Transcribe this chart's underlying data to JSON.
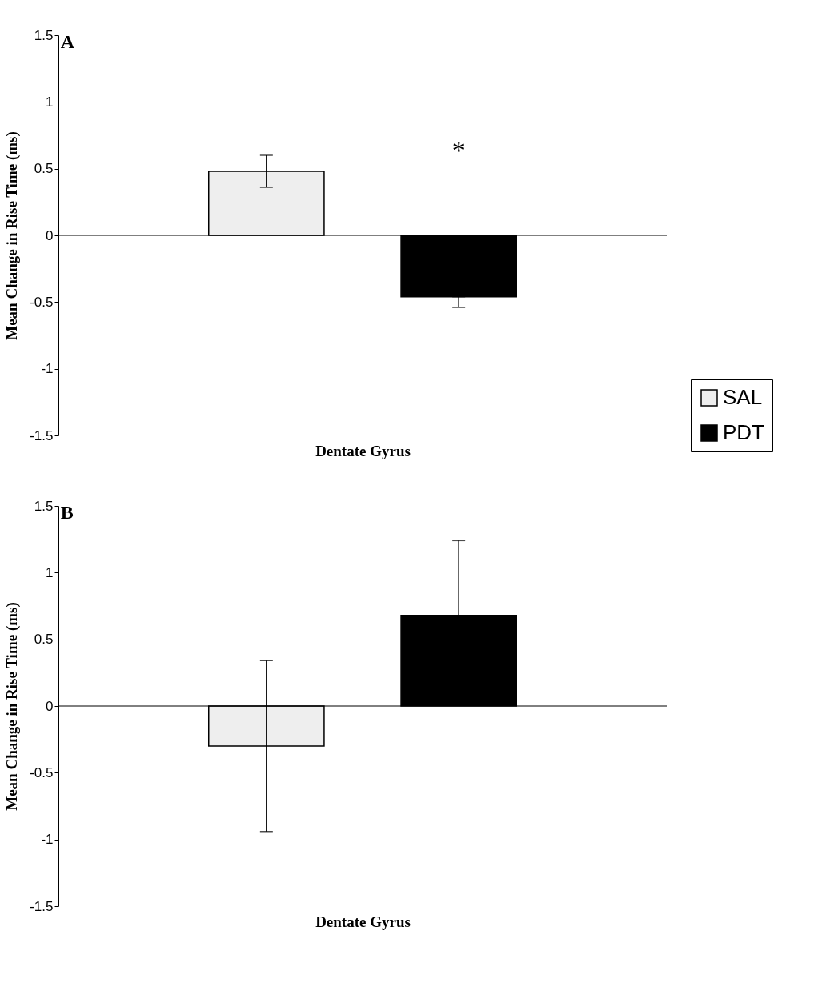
{
  "chart_data": [
    {
      "type": "bar",
      "title": "A",
      "xlabel": "Dentate Gyrus",
      "ylabel": "Mean Change in Rise Time (ms)",
      "categories": [
        null
      ],
      "series": [
        {
          "name": "SAL",
          "color": "#eeeeee",
          "values": [
            0.48
          ],
          "errors": [
            0.12
          ]
        },
        {
          "name": "PDT",
          "color": "#000000",
          "values": [
            -0.46
          ],
          "errors": [
            [
              -0.54,
              -0.46
            ]
          ]
        }
      ],
      "ylim": [
        -1.5,
        1.5
      ],
      "yticks": [
        -1.5,
        -1,
        -0.5,
        0,
        0.5,
        1,
        1.5
      ],
      "legend": "right",
      "annotations": [
        "*"
      ]
    },
    {
      "type": "bar",
      "title": "B",
      "xlabel": "Dentate Gyrus",
      "ylabel": "Mean Change in Rise Time (ms)",
      "categories": [
        null
      ],
      "series": [
        {
          "color": "#eeeeee",
          "values": [
            -0.3
          ],
          "errors": [
            0.64
          ]
        },
        {
          "color": "#000000",
          "values": [
            0.68
          ],
          "errors": [
            0.56
          ]
        }
      ],
      "ylim": [
        -1.5,
        1.5
      ],
      "yticks": [
        -1.5,
        -1,
        -0.5,
        0,
        0.5,
        1,
        1.5
      ],
      "legend": false
    }
  ]
}
